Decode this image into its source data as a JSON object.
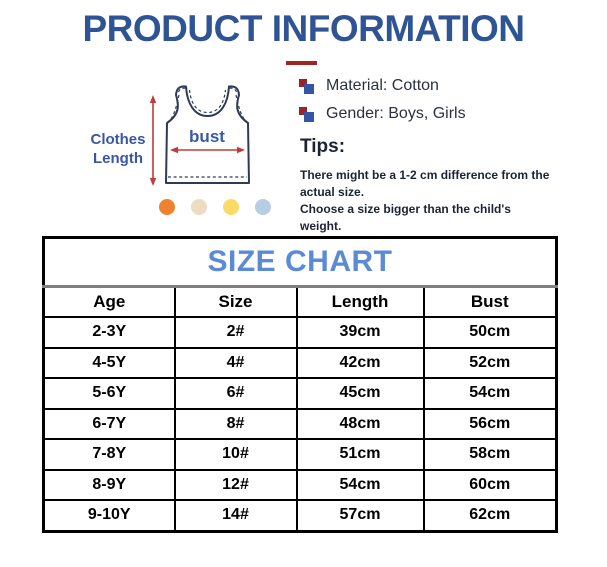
{
  "header": {
    "title": "PRODUCT INFORMATION",
    "title_color": "#2F5496",
    "underline_color": "#A02622"
  },
  "diagram": {
    "length_label": "Clothes Length",
    "bust_label": "bust",
    "label_color": "#3A55A5",
    "outline_color": "#2E3A59",
    "arrow_color": "#C23B36",
    "swatch_colors": [
      "#F0822F",
      "#EBDCC2",
      "#FBDB65",
      "#B7CDE2"
    ]
  },
  "details": {
    "items": [
      {
        "label": "Material: Cotton"
      },
      {
        "label": "Gender: Boys, Girls"
      }
    ],
    "tips_heading": "Tips:",
    "tips": [
      "There might be a 1-2 cm difference from the actual size.",
      "Choose a size bigger than the child's weight."
    ]
  },
  "size_chart": {
    "title": "SIZE CHART",
    "title_color": "#5B8BD5",
    "columns": [
      "Age",
      "Size",
      "Length",
      "Bust"
    ],
    "rows": [
      [
        "2-3Y",
        "2#",
        "39cm",
        "50cm"
      ],
      [
        "4-5Y",
        "4#",
        "42cm",
        "52cm"
      ],
      [
        "5-6Y",
        "6#",
        "45cm",
        "54cm"
      ],
      [
        "6-7Y",
        "8#",
        "48cm",
        "56cm"
      ],
      [
        "7-8Y",
        "10#",
        "51cm",
        "58cm"
      ],
      [
        "8-9Y",
        "12#",
        "54cm",
        "60cm"
      ],
      [
        "9-10Y",
        "14#",
        "57cm",
        "62cm"
      ]
    ]
  }
}
